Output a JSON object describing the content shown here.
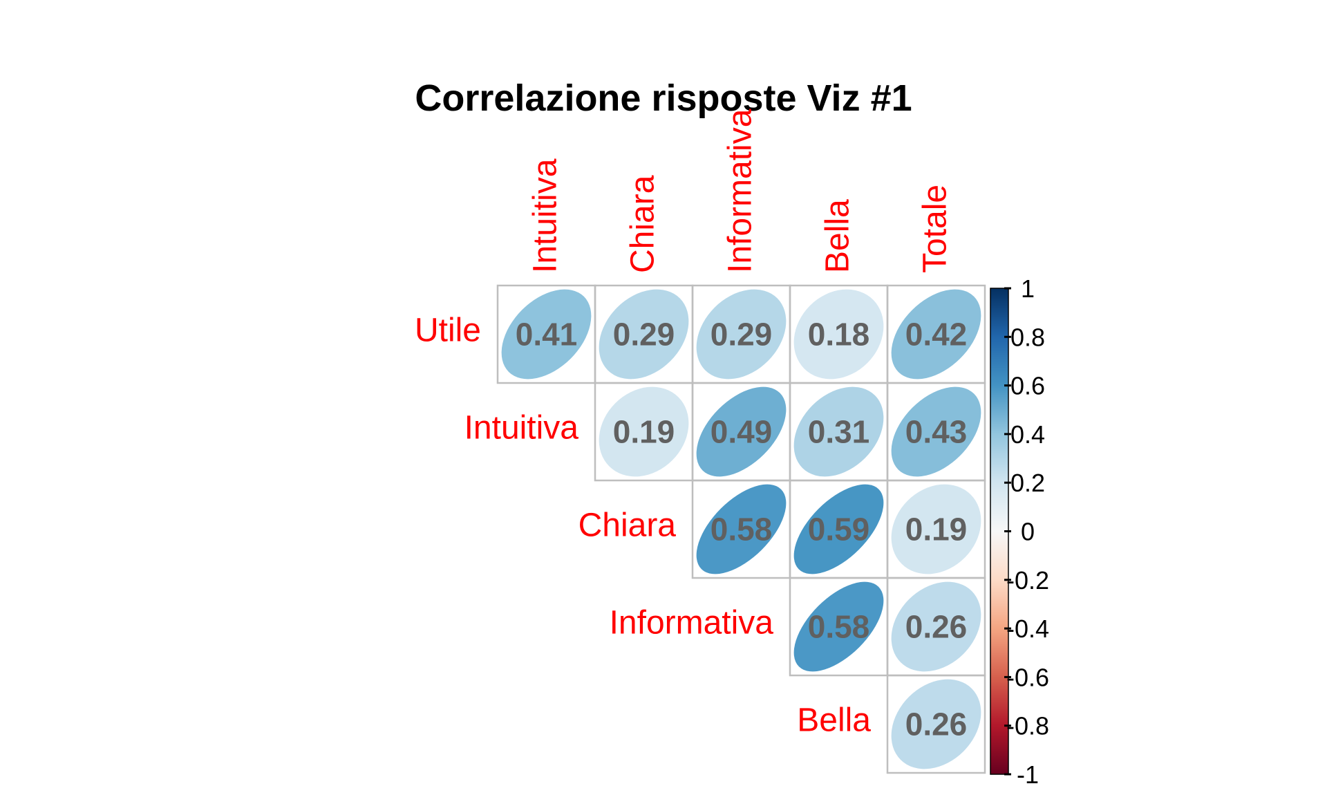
{
  "chart_data": {
    "type": "heatmap",
    "title": "Correlazione risposte Viz #1",
    "row_labels": [
      "Utile",
      "Intuitiva",
      "Chiara",
      "Informativa",
      "Bella"
    ],
    "col_labels": [
      "Intuitiva",
      "Chiara",
      "Informativa",
      "Bella",
      "Totale"
    ],
    "cells": [
      {
        "row": 0,
        "col": 0,
        "value": 0.41,
        "label": "0.41"
      },
      {
        "row": 0,
        "col": 1,
        "value": 0.29,
        "label": "0.29"
      },
      {
        "row": 0,
        "col": 2,
        "value": 0.29,
        "label": "0.29"
      },
      {
        "row": 0,
        "col": 3,
        "value": 0.18,
        "label": "0.18"
      },
      {
        "row": 0,
        "col": 4,
        "value": 0.42,
        "label": "0.42"
      },
      {
        "row": 1,
        "col": 1,
        "value": 0.19,
        "label": "0.19"
      },
      {
        "row": 1,
        "col": 2,
        "value": 0.49,
        "label": "0.49"
      },
      {
        "row": 1,
        "col": 3,
        "value": 0.31,
        "label": "0.31"
      },
      {
        "row": 1,
        "col": 4,
        "value": 0.43,
        "label": "0.43"
      },
      {
        "row": 2,
        "col": 2,
        "value": 0.58,
        "label": "0.58"
      },
      {
        "row": 2,
        "col": 3,
        "value": 0.59,
        "label": "0.59"
      },
      {
        "row": 2,
        "col": 4,
        "value": 0.19,
        "label": "0.19"
      },
      {
        "row": 3,
        "col": 3,
        "value": 0.58,
        "label": "0.58"
      },
      {
        "row": 3,
        "col": 4,
        "value": 0.26,
        "label": "0.26"
      },
      {
        "row": 4,
        "col": 4,
        "value": 0.26,
        "label": "0.26"
      }
    ],
    "colorbar": {
      "range": [
        -1,
        1
      ],
      "ticks": [
        "1",
        "0.8",
        "0.6",
        "0.4",
        "0.2",
        "0",
        "-0.2",
        "-0.4",
        "-0.6",
        "-0.8",
        "-1"
      ],
      "colors": [
        "#67001f",
        "#b2182b",
        "#d6604d",
        "#f4a582",
        "#fddbc7",
        "#f7f7f7",
        "#d1e5f0",
        "#92c5de",
        "#4393c3",
        "#2166ac",
        "#053061"
      ]
    },
    "label_color": "#ff0000",
    "value_text_color": "#606060",
    "grid_color": "#bebebe"
  }
}
